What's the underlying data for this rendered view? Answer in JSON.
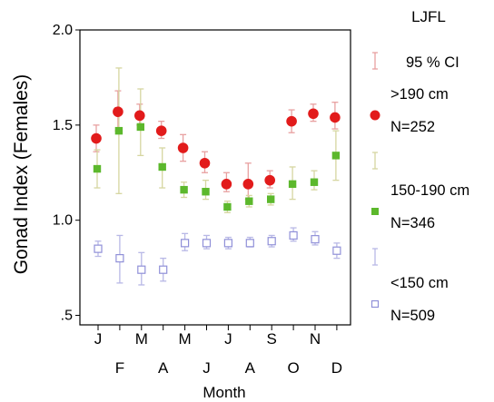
{
  "chart_data": {
    "type": "scatter",
    "title": "LJFL",
    "xlabel": "Month",
    "ylabel": "Gonad Index (Females)",
    "ylim": [
      0.45,
      2.0
    ],
    "yticks": [
      {
        "value": 0.5,
        "label": ".5"
      },
      {
        "value": 1.0,
        "label": "1.0"
      },
      {
        "value": 1.5,
        "label": "1.5"
      },
      {
        "value": 2.0,
        "label": "2.0"
      }
    ],
    "categories": [
      "J",
      "F",
      "M",
      "A",
      "M",
      "J",
      "J",
      "A",
      "S",
      "O",
      "N",
      "D"
    ],
    "legend_position": "right",
    "grid": false,
    "ci_label": "95 % CI",
    "series": [
      {
        "name": ">190 cm",
        "n_label": "N=252",
        "marker": "circle",
        "color": "#e21b1b",
        "ci_color": "#e8a0a0",
        "values": [
          1.43,
          1.57,
          1.55,
          1.47,
          1.38,
          1.3,
          1.19,
          1.19,
          1.21,
          1.52,
          1.56,
          1.54
        ],
        "ci_low": [
          1.36,
          1.47,
          1.5,
          1.43,
          1.31,
          1.25,
          1.15,
          1.11,
          1.17,
          1.46,
          1.52,
          1.48
        ],
        "ci_high": [
          1.5,
          1.68,
          1.61,
          1.52,
          1.45,
          1.36,
          1.25,
          1.3,
          1.26,
          1.58,
          1.61,
          1.62
        ]
      },
      {
        "name": "150-190 cm",
        "n_label": "N=346",
        "marker": "square",
        "color": "#5cb82c",
        "ci_color": "#d6d6a0",
        "values": [
          1.27,
          1.47,
          1.49,
          1.28,
          1.16,
          1.15,
          1.07,
          1.1,
          1.11,
          1.19,
          1.2,
          1.34
        ],
        "ci_low": [
          1.17,
          1.14,
          1.34,
          1.17,
          1.12,
          1.11,
          1.04,
          1.07,
          1.08,
          1.11,
          1.16,
          1.21
        ],
        "ci_high": [
          1.37,
          1.8,
          1.69,
          1.38,
          1.2,
          1.21,
          1.1,
          1.13,
          1.14,
          1.28,
          1.26,
          1.47
        ]
      },
      {
        "name": "<150 cm",
        "n_label": "N=509",
        "marker": "open-square",
        "color": "#9090d8",
        "ci_color": "#b8b8e6",
        "values": [
          0.85,
          0.8,
          0.74,
          0.74,
          0.88,
          0.88,
          0.88,
          0.88,
          0.89,
          0.92,
          0.9,
          0.84
        ],
        "ci_low": [
          0.81,
          0.67,
          0.66,
          0.68,
          0.84,
          0.85,
          0.85,
          0.86,
          0.86,
          0.89,
          0.87,
          0.8
        ],
        "ci_high": [
          0.89,
          0.92,
          0.83,
          0.8,
          0.93,
          0.92,
          0.91,
          0.91,
          0.92,
          0.96,
          0.94,
          0.88
        ]
      }
    ]
  }
}
